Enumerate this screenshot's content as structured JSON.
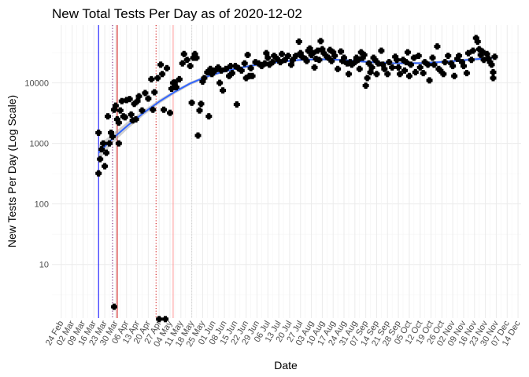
{
  "chart_data": {
    "type": "scatter",
    "title": "New Total Tests Per Day as of 2020-12-02",
    "xlabel": "Date",
    "ylabel": "New Tests Per Day (Log Scale)",
    "y_scale": "log10",
    "ylim": [
      1.3,
      90000
    ],
    "xlim": [
      "2020-02-18",
      "2020-12-16"
    ],
    "grid": true,
    "legend": "none",
    "x_ticks": [
      "2020-02-24",
      "2020-03-02",
      "2020-03-09",
      "2020-03-16",
      "2020-03-23",
      "2020-03-30",
      "2020-04-06",
      "2020-04-13",
      "2020-04-20",
      "2020-04-27",
      "2020-05-04",
      "2020-05-11",
      "2020-05-18",
      "2020-05-25",
      "2020-06-01",
      "2020-06-08",
      "2020-06-15",
      "2020-06-22",
      "2020-06-29",
      "2020-07-06",
      "2020-07-13",
      "2020-07-20",
      "2020-07-27",
      "2020-08-03",
      "2020-08-10",
      "2020-08-17",
      "2020-08-24",
      "2020-08-31",
      "2020-09-07",
      "2020-09-14",
      "2020-09-21",
      "2020-09-28",
      "2020-10-05",
      "2020-10-12",
      "2020-10-19",
      "2020-10-26",
      "2020-11-02",
      "2020-11-09",
      "2020-11-16",
      "2020-11-23",
      "2020-11-30",
      "2020-12-07",
      "2020-12-14"
    ],
    "x_tick_labels": [
      "24 Feb",
      "02 Mar",
      "09 Mar",
      "16 Mar",
      "23 Mar",
      "30 Mar",
      "06 Apr",
      "13 Apr",
      "20 Apr",
      "27 Apr",
      "04 May",
      "11 May",
      "18 May",
      "25 May",
      "01 Jun",
      "08 Jun",
      "15 Jun",
      "22 Jun",
      "29 Jun",
      "06 Jul",
      "13 Jul",
      "20 Jul",
      "27 Jul",
      "03 Aug",
      "10 Aug",
      "17 Aug",
      "24 Aug",
      "31 Aug",
      "07 Sep",
      "14 Sep",
      "21 Sep",
      "28 Sep",
      "05 Oct",
      "12 Oct",
      "19 Oct",
      "26 Oct",
      "02 Nov",
      "09 Nov",
      "16 Nov",
      "23 Nov",
      "30 Nov",
      "07 Dec",
      "14 Dec"
    ],
    "y_ticks": [
      10,
      100,
      1000,
      10000
    ],
    "y_tick_labels": [
      "10",
      "100",
      "1000",
      "10000"
    ],
    "vlines": [
      {
        "date": "2020-03-19",
        "color": "#0000ff",
        "style": "solid"
      },
      {
        "date": "2020-03-31",
        "color": "#cc0000",
        "style": "solid"
      },
      {
        "date": "2020-03-28",
        "color": "#660066",
        "style": "dotted"
      },
      {
        "date": "2020-04-25",
        "color": "#cc0000",
        "style": "dotted"
      },
      {
        "date": "2020-05-06",
        "color": "#ff9999",
        "style": "solid"
      },
      {
        "date": "2020-05-18",
        "color": "#cccccc",
        "style": "dotted"
      }
    ],
    "trend": {
      "color": "#3366ff",
      "band_color": "#999999",
      "x": [
        "2020-03-19",
        "2020-03-28",
        "2020-04-07",
        "2020-04-17",
        "2020-04-27",
        "2020-05-07",
        "2020-05-17",
        "2020-05-27",
        "2020-06-06",
        "2020-06-16",
        "2020-06-26",
        "2020-07-06",
        "2020-07-16",
        "2020-07-26",
        "2020-08-05",
        "2020-08-15",
        "2020-08-25",
        "2020-09-04",
        "2020-09-14",
        "2020-09-24",
        "2020-10-04",
        "2020-10-14",
        "2020-10-24",
        "2020-11-03",
        "2020-11-13",
        "2020-11-23",
        "2020-12-01"
      ],
      "y": [
        700,
        1200,
        2000,
        3200,
        4900,
        7100,
        9800,
        12500,
        15000,
        17300,
        19400,
        21100,
        22600,
        23900,
        24500,
        24400,
        23700,
        22600,
        21700,
        21200,
        21100,
        21300,
        22000,
        23000,
        24300,
        25300,
        26500
      ],
      "band_lo": [
        520,
        1000,
        1750,
        2900,
        4500,
        6600,
        9200,
        11800,
        14200,
        16400,
        18400,
        20100,
        21600,
        22800,
        23400,
        23300,
        22600,
        21600,
        20700,
        20200,
        20100,
        20300,
        20900,
        21900,
        23000,
        23700,
        24000
      ],
      "band_hi": [
        940,
        1450,
        2300,
        3550,
        5300,
        7600,
        10400,
        13200,
        15800,
        18200,
        20400,
        22100,
        23600,
        25000,
        25600,
        25500,
        24800,
        23600,
        22700,
        22200,
        22100,
        22300,
        23100,
        24100,
        25600,
        27000,
        29500
      ]
    },
    "series": [
      {
        "color": "#000000",
        "points": [
          [
            "2020-03-19",
            320
          ],
          [
            "2020-03-19",
            1500
          ],
          [
            "2020-03-20",
            550
          ],
          [
            "2020-03-21",
            800
          ],
          [
            "2020-03-22",
            1000
          ],
          [
            "2020-03-23",
            420
          ],
          [
            "2020-03-24",
            700
          ],
          [
            "2020-03-25",
            2800
          ],
          [
            "2020-03-26",
            1000
          ],
          [
            "2020-03-27",
            1500
          ],
          [
            "2020-03-28",
            1300
          ],
          [
            "2020-03-29",
            3600
          ],
          [
            "2020-03-29",
            2
          ],
          [
            "2020-03-30",
            4200
          ],
          [
            "2020-03-31",
            2500
          ],
          [
            "2020-04-01",
            1000
          ],
          [
            "2020-04-01",
            2200
          ],
          [
            "2020-04-02",
            3500
          ],
          [
            "2020-04-03",
            5000
          ],
          [
            "2020-04-04",
            2800
          ],
          [
            "2020-04-05",
            2700
          ],
          [
            "2020-04-06",
            5200
          ],
          [
            "2020-04-08",
            5400
          ],
          [
            "2020-04-09",
            3000
          ],
          [
            "2020-04-10",
            2400
          ],
          [
            "2020-04-11",
            4500
          ],
          [
            "2020-04-12",
            2500
          ],
          [
            "2020-04-13",
            5000
          ],
          [
            "2020-04-14",
            6000
          ],
          [
            "2020-04-16",
            3500
          ],
          [
            "2020-04-18",
            6800
          ],
          [
            "2020-04-20",
            5500
          ],
          [
            "2020-04-22",
            11500
          ],
          [
            "2020-04-23",
            3600
          ],
          [
            "2020-04-24",
            7000
          ],
          [
            "2020-04-26",
            12000
          ],
          [
            "2020-04-27",
            1.25
          ],
          [
            "2020-04-28",
            20000
          ],
          [
            "2020-04-29",
            14000
          ],
          [
            "2020-04-30",
            3600
          ],
          [
            "2020-05-01",
            1.25
          ],
          [
            "2020-05-02",
            17500
          ],
          [
            "2020-05-04",
            3200
          ],
          [
            "2020-05-05",
            8000
          ],
          [
            "2020-05-06",
            10000
          ],
          [
            "2020-05-07",
            10200
          ],
          [
            "2020-05-08",
            8500
          ],
          [
            "2020-05-10",
            11500
          ],
          [
            "2020-05-12",
            21000
          ],
          [
            "2020-05-13",
            30000
          ],
          [
            "2020-05-15",
            24000
          ],
          [
            "2020-05-17",
            19000
          ],
          [
            "2020-05-18",
            4700
          ],
          [
            "2020-05-19",
            26000
          ],
          [
            "2020-05-20",
            30000
          ],
          [
            "2020-05-21",
            26000
          ],
          [
            "2020-05-22",
            1350
          ],
          [
            "2020-05-23",
            3500
          ],
          [
            "2020-05-24",
            4500
          ],
          [
            "2020-05-25",
            10500
          ],
          [
            "2020-05-26",
            12000
          ],
          [
            "2020-05-28",
            15000
          ],
          [
            "2020-05-29",
            2800
          ],
          [
            "2020-05-30",
            17000
          ],
          [
            "2020-05-31",
            14000
          ],
          [
            "2020-06-02",
            16000
          ],
          [
            "2020-06-04",
            18000
          ],
          [
            "2020-06-05",
            10000
          ],
          [
            "2020-06-06",
            16000
          ],
          [
            "2020-06-07",
            7500
          ],
          [
            "2020-06-09",
            17000
          ],
          [
            "2020-06-11",
            13000
          ],
          [
            "2020-06-12",
            19000
          ],
          [
            "2020-06-13",
            14500
          ],
          [
            "2020-06-15",
            19000
          ],
          [
            "2020-06-16",
            4400
          ],
          [
            "2020-06-17",
            17500
          ],
          [
            "2020-06-19",
            16000
          ],
          [
            "2020-06-21",
            21000
          ],
          [
            "2020-06-22",
            12000
          ],
          [
            "2020-06-23",
            29000
          ],
          [
            "2020-06-24",
            13000
          ],
          [
            "2020-06-25",
            17500
          ],
          [
            "2020-06-26",
            13000
          ],
          [
            "2020-06-28",
            22000
          ],
          [
            "2020-06-30",
            21000
          ],
          [
            "2020-07-02",
            19000
          ],
          [
            "2020-07-04",
            21000
          ],
          [
            "2020-07-05",
            31000
          ],
          [
            "2020-07-06",
            26000
          ],
          [
            "2020-07-07",
            20000
          ],
          [
            "2020-07-09",
            22000
          ],
          [
            "2020-07-10",
            28000
          ],
          [
            "2020-07-12",
            25000
          ],
          [
            "2020-07-14",
            22000
          ],
          [
            "2020-07-15",
            30000
          ],
          [
            "2020-07-17",
            24000
          ],
          [
            "2020-07-19",
            28000
          ],
          [
            "2020-07-21",
            20000
          ],
          [
            "2020-07-22",
            24000
          ],
          [
            "2020-07-24",
            28000
          ],
          [
            "2020-07-26",
            48000
          ],
          [
            "2020-07-27",
            31000
          ],
          [
            "2020-07-28",
            27000
          ],
          [
            "2020-07-30",
            25000
          ],
          [
            "2020-07-31",
            23000
          ],
          [
            "2020-08-01",
            34000
          ],
          [
            "2020-08-02",
            37000
          ],
          [
            "2020-08-03",
            29000
          ],
          [
            "2020-08-04",
            31000
          ],
          [
            "2020-08-05",
            18000
          ],
          [
            "2020-08-06",
            25000
          ],
          [
            "2020-08-07",
            34000
          ],
          [
            "2020-08-08",
            24000
          ],
          [
            "2020-08-09",
            49000
          ],
          [
            "2020-08-10",
            36000
          ],
          [
            "2020-08-11",
            31000
          ],
          [
            "2020-08-13",
            27000
          ],
          [
            "2020-08-14",
            26000
          ],
          [
            "2020-08-15",
            35000
          ],
          [
            "2020-08-16",
            23000
          ],
          [
            "2020-08-17",
            32000
          ],
          [
            "2020-08-18",
            28000
          ],
          [
            "2020-08-20",
            17000
          ],
          [
            "2020-08-22",
            33000
          ],
          [
            "2020-08-23",
            23000
          ],
          [
            "2020-08-24",
            26000
          ],
          [
            "2020-08-26",
            21000
          ],
          [
            "2020-08-27",
            14000
          ],
          [
            "2020-08-28",
            22000
          ],
          [
            "2020-08-29",
            20000
          ],
          [
            "2020-08-31",
            22000
          ],
          [
            "2020-09-01",
            26000
          ],
          [
            "2020-09-02",
            24000
          ],
          [
            "2020-09-03",
            17000
          ],
          [
            "2020-09-04",
            32000
          ],
          [
            "2020-09-05",
            26000
          ],
          [
            "2020-09-06",
            29000
          ],
          [
            "2020-09-07",
            9000
          ],
          [
            "2020-09-08",
            12000
          ],
          [
            "2020-09-09",
            21000
          ],
          [
            "2020-09-10",
            15000
          ],
          [
            "2020-09-11",
            18000
          ],
          [
            "2020-09-12",
            26000
          ],
          [
            "2020-09-13",
            24000
          ],
          [
            "2020-09-14",
            14000
          ],
          [
            "2020-09-15",
            21000
          ],
          [
            "2020-09-17",
            34000
          ],
          [
            "2020-09-18",
            20000
          ],
          [
            "2020-09-19",
            17000
          ],
          [
            "2020-09-21",
            14000
          ],
          [
            "2020-09-22",
            22000
          ],
          [
            "2020-09-24",
            18000
          ],
          [
            "2020-09-26",
            27000
          ],
          [
            "2020-09-27",
            24000
          ],
          [
            "2020-09-28",
            18000
          ],
          [
            "2020-09-29",
            14000
          ],
          [
            "2020-10-01",
            24000
          ],
          [
            "2020-10-02",
            16000
          ],
          [
            "2020-10-03",
            22000
          ],
          [
            "2020-10-04",
            32000
          ],
          [
            "2020-10-05",
            13000
          ],
          [
            "2020-10-06",
            20000
          ],
          [
            "2020-10-08",
            26000
          ],
          [
            "2020-10-09",
            15000
          ],
          [
            "2020-10-11",
            28000
          ],
          [
            "2020-10-12",
            18000
          ],
          [
            "2020-10-14",
            14500
          ],
          [
            "2020-10-15",
            22000
          ],
          [
            "2020-10-17",
            20000
          ],
          [
            "2020-10-18",
            11000
          ],
          [
            "2020-10-20",
            26000
          ],
          [
            "2020-10-21",
            20000
          ],
          [
            "2020-10-23",
            40000
          ],
          [
            "2020-10-24",
            17000
          ],
          [
            "2020-10-25",
            16000
          ],
          [
            "2020-10-27",
            14000
          ],
          [
            "2020-10-28",
            22000
          ],
          [
            "2020-10-30",
            28000
          ],
          [
            "2020-11-01",
            21000
          ],
          [
            "2020-11-02",
            19000
          ],
          [
            "2020-11-03",
            13000
          ],
          [
            "2020-11-05",
            25000
          ],
          [
            "2020-11-06",
            28000
          ],
          [
            "2020-11-08",
            22000
          ],
          [
            "2020-11-09",
            19000
          ],
          [
            "2020-11-11",
            14500
          ],
          [
            "2020-11-12",
            31000
          ],
          [
            "2020-11-14",
            24000
          ],
          [
            "2020-11-15",
            34000
          ],
          [
            "2020-11-17",
            55000
          ],
          [
            "2020-11-18",
            48000
          ],
          [
            "2020-11-19",
            36000
          ],
          [
            "2020-11-20",
            29000
          ],
          [
            "2020-11-21",
            33000
          ],
          [
            "2020-11-22",
            24000
          ],
          [
            "2020-11-24",
            30000
          ],
          [
            "2020-11-25",
            25000
          ],
          [
            "2020-11-26",
            22000
          ],
          [
            "2020-11-27",
            20000
          ],
          [
            "2020-11-28",
            15000
          ],
          [
            "2020-11-28",
            12000
          ],
          [
            "2020-11-29",
            27000
          ]
        ]
      }
    ]
  }
}
